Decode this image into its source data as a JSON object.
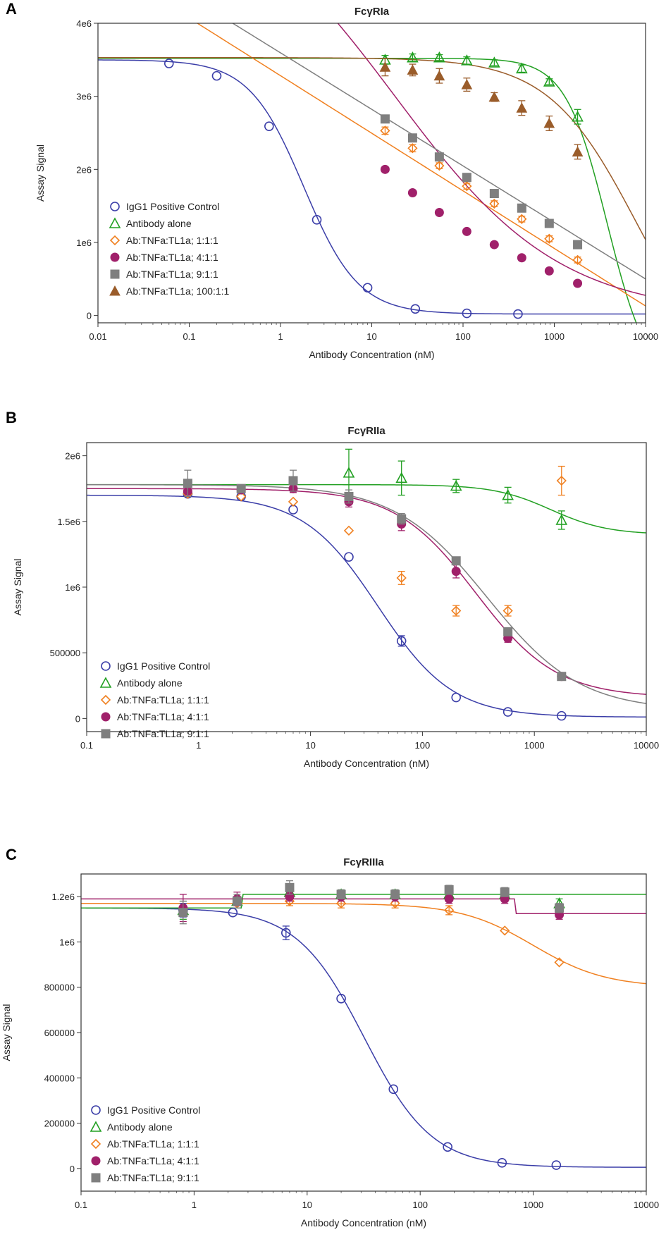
{
  "chart_data": [
    {
      "type": "scatter",
      "panel": "A",
      "title": "FcγRIa",
      "xlabel": "Antibody Concentration (nM)",
      "ylabel": "Assay Signal",
      "xscale": "log",
      "xlim": [
        0.01,
        10000
      ],
      "ylim": [
        -100000,
        4000000
      ],
      "xticks": [
        0.01,
        0.1,
        1,
        10,
        100,
        1000,
        10000
      ],
      "xtick_labels": [
        "0.01",
        "0.1",
        "1",
        "10",
        "100",
        "1000",
        "10000"
      ],
      "yticks": [
        0,
        1000000,
        2000000,
        3000000,
        4000000
      ],
      "ytick_labels": [
        "0",
        "1e6",
        "2e6",
        "3e6",
        "4e6"
      ],
      "legend_position": "lower-left",
      "series": [
        {
          "name": "IgG1 Positive Control",
          "color": "#3b3ea8",
          "marker": "circle-open",
          "x": [
            0.06,
            0.2,
            0.75,
            2.5,
            9,
            30,
            110,
            400
          ],
          "y": [
            3450000,
            3280000,
            2590000,
            1310000,
            380000,
            90000,
            30000,
            20000
          ],
          "err": [
            0,
            0,
            0,
            0,
            0,
            0,
            0,
            0
          ],
          "curve": {
            "model": "4pl",
            "top": 3500000,
            "bottom": 20000,
            "ec50": 1.8,
            "hill": 1.45
          }
        },
        {
          "name": "Antibody alone",
          "color": "#22a022",
          "marker": "triangle-open",
          "x": [
            14,
            28,
            55,
            110,
            220,
            440,
            880,
            1800
          ],
          "y": [
            3500000,
            3530000,
            3530000,
            3490000,
            3460000,
            3380000,
            3200000,
            2720000
          ],
          "err": [
            60000,
            50000,
            40000,
            50000,
            40000,
            50000,
            40000,
            100000
          ],
          "curve": {
            "model": "4pl",
            "top": 3520000,
            "bottom": -1000000,
            "ec50": 3800,
            "hill": 1.9
          }
        },
        {
          "name": "Ab:TNFa:TL1a; 1:1:1",
          "color": "#f08020",
          "marker": "diamond-open",
          "x": [
            14,
            28,
            55,
            110,
            220,
            440,
            880,
            1800
          ],
          "y": [
            2530000,
            2290000,
            2050000,
            1770000,
            1530000,
            1320000,
            1050000,
            760000
          ],
          "err": [
            50000,
            50000,
            40000,
            40000,
            40000,
            40000,
            40000,
            40000
          ],
          "curve": {
            "model": "loglinear",
            "x0": 0.5,
            "y0": 3520000,
            "x1": 10000,
            "y1": 130000
          }
        },
        {
          "name": "Ab:TNFa:TL1a; 4:1:1",
          "color": "#a0206a",
          "marker": "circle-filled",
          "x": [
            14,
            28,
            55,
            110,
            220,
            440,
            880,
            1800
          ],
          "y": [
            2000000,
            1680000,
            1410000,
            1150000,
            970000,
            790000,
            610000,
            440000
          ],
          "err": [
            0,
            0,
            0,
            0,
            0,
            0,
            0,
            0
          ],
          "curve": {
            "model": "4pl",
            "top": 6000000,
            "bottom": 0,
            "ec50": 18,
            "hill": 0.48
          }
        },
        {
          "name": "Ab:TNFa:TL1a; 9:1:1",
          "color": "#7f7f7f",
          "marker": "square-filled",
          "x": [
            14,
            28,
            55,
            110,
            220,
            440,
            880,
            1800
          ],
          "y": [
            2690000,
            2430000,
            2170000,
            1890000,
            1670000,
            1470000,
            1260000,
            970000
          ],
          "err": [
            0,
            0,
            0,
            0,
            0,
            0,
            0,
            0
          ],
          "curve": {
            "model": "loglinear",
            "x0": 0.3,
            "y0": 4000000,
            "x1": 10000,
            "y1": 500000
          }
        },
        {
          "name": "Ab:TNFa:TL1a; 100:1:1",
          "color": "#9a5c2a",
          "marker": "triangle-filled",
          "x": [
            14,
            28,
            55,
            110,
            220,
            440,
            880,
            1800
          ],
          "y": [
            3400000,
            3360000,
            3280000,
            3160000,
            2990000,
            2840000,
            2630000,
            2240000
          ],
          "err": [
            120000,
            80000,
            100000,
            90000,
            60000,
            100000,
            100000,
            100000
          ],
          "curve": {
            "model": "4pl",
            "top": 3530000,
            "bottom": -1000000,
            "ec50": 8000,
            "hill": 0.9
          }
        }
      ]
    },
    {
      "type": "scatter",
      "panel": "B",
      "title": "FcγRIIa",
      "xlabel": "Antibody Concentration (nM)",
      "ylabel": "Assay Signal",
      "xscale": "log",
      "xlim": [
        0.1,
        10000
      ],
      "ylim": [
        -100000,
        2100000
      ],
      "xticks": [
        0.1,
        1,
        10,
        100,
        1000,
        10000
      ],
      "xtick_labels": [
        "0.1",
        "1",
        "10",
        "100",
        "1000",
        "10000"
      ],
      "yticks": [
        0,
        500000,
        1000000,
        1500000,
        2000000
      ],
      "ytick_labels": [
        "0",
        "500000",
        "1e6",
        "1.5e6",
        "2e6"
      ],
      "legend_position": "lower-left",
      "series": [
        {
          "name": "IgG1 Positive Control",
          "color": "#3b3ea8",
          "marker": "circle-open",
          "x": [
            0.8,
            2.4,
            7,
            22,
            65,
            200,
            580,
            1750
          ],
          "y": [
            1710000,
            1690000,
            1590000,
            1230000,
            590000,
            160000,
            50000,
            20000
          ],
          "err": [
            0,
            0,
            0,
            0,
            40000,
            0,
            0,
            0
          ],
          "curve": {
            "model": "4pl",
            "top": 1700000,
            "bottom": 10000,
            "ec50": 40,
            "hill": 1.3
          }
        },
        {
          "name": "Antibody alone",
          "color": "#22a022",
          "marker": "triangle-open",
          "x": [
            22,
            65,
            200,
            580,
            1750
          ],
          "y": [
            1870000,
            1830000,
            1770000,
            1700000,
            1510000
          ],
          "err": [
            180000,
            130000,
            50000,
            60000,
            70000
          ],
          "curve": {
            "model": "4pl",
            "top": 1780000,
            "bottom": 1400000,
            "ec50": 1400,
            "hill": 1.7
          }
        },
        {
          "name": "Ab:TNFa:TL1a; 1:1:1",
          "color": "#f08020",
          "marker": "diamond-open",
          "x": [
            0.8,
            2.4,
            7,
            22,
            65,
            200,
            580,
            1750
          ],
          "y": [
            1710000,
            1690000,
            1650000,
            1430000,
            1070000,
            820000,
            820000,
            1810000
          ],
          "err": [
            0,
            0,
            0,
            0,
            50000,
            40000,
            40000,
            110000
          ]
        },
        {
          "name": "Ab:TNFa:TL1a; 4:1:1",
          "color": "#a0206a",
          "marker": "circle-filled",
          "x": [
            0.8,
            2.4,
            7,
            22,
            65,
            200,
            580,
            1750
          ],
          "y": [
            1730000,
            1740000,
            1750000,
            1650000,
            1480000,
            1120000,
            610000,
            320000
          ],
          "err": [
            40000,
            0,
            30000,
            40000,
            50000,
            50000,
            30000,
            0
          ],
          "curve": {
            "model": "4pl",
            "top": 1750000,
            "bottom": 160000,
            "ec50": 300,
            "hill": 1.2
          }
        },
        {
          "name": "Ab:TNFa:TL1a; 9:1:1",
          "color": "#7f7f7f",
          "marker": "square-filled",
          "x": [
            0.8,
            2.4,
            7,
            22,
            65,
            200,
            580,
            1750
          ],
          "y": [
            1790000,
            1750000,
            1810000,
            1690000,
            1520000,
            1200000,
            660000,
            320000
          ],
          "err": [
            100000,
            0,
            80000,
            50000,
            40000,
            0,
            0,
            0
          ],
          "curve": {
            "model": "4pl",
            "top": 1780000,
            "bottom": 60000,
            "ec50": 380,
            "hill": 1.05
          }
        }
      ]
    },
    {
      "type": "scatter",
      "panel": "C",
      "title": "FcγRIIIa",
      "xlabel": "Antibody Concentration (nM)",
      "ylabel": "Assay Signal",
      "xscale": "log",
      "xlim": [
        0.1,
        10000
      ],
      "ylim": [
        -100000,
        1300000
      ],
      "xticks": [
        0.1,
        1,
        10,
        100,
        1000,
        10000
      ],
      "xtick_labels": [
        "0.1",
        "1",
        "10",
        "100",
        "1000",
        "10000"
      ],
      "yticks": [
        0,
        200000,
        400000,
        600000,
        800000,
        1000000,
        1200000
      ],
      "ytick_labels": [
        "0",
        "200000",
        "400000",
        "600000",
        "800000",
        "1e6",
        "1.2e6"
      ],
      "legend_position": "lower-left",
      "series": [
        {
          "name": "IgG1 Positive Control",
          "color": "#3b3ea8",
          "marker": "circle-open",
          "x": [
            0.8,
            2.2,
            6.5,
            20,
            58,
            175,
            530,
            1600
          ],
          "y": [
            1140000,
            1130000,
            1040000,
            750000,
            350000,
            95000,
            25000,
            15000
          ],
          "err": [
            30000,
            0,
            30000,
            0,
            0,
            0,
            0,
            0
          ],
          "curve": {
            "model": "4pl",
            "top": 1150000,
            "bottom": 5000,
            "ec50": 32,
            "hill": 1.45
          }
        },
        {
          "name": "Antibody alone",
          "color": "#22a022",
          "marker": "triangle-open",
          "x": [
            0.8,
            2.4,
            7,
            20,
            60,
            180,
            560,
            1700
          ],
          "y": [
            1140000,
            1180000,
            1220000,
            1210000,
            1210000,
            1210000,
            1210000,
            1170000
          ],
          "err": [
            40000,
            20000,
            20000,
            20000,
            20000,
            20000,
            20000,
            20000
          ],
          "curve": {
            "model": "step",
            "y_before": 1150000,
            "y_after": 1210000,
            "step_x": 2.7
          }
        },
        {
          "name": "Ab:TNFa:TL1a; 1:1:1",
          "color": "#f08020",
          "marker": "diamond-open",
          "x": [
            0.8,
            2.4,
            7,
            20,
            60,
            180,
            560,
            1700
          ],
          "y": [
            1150000,
            1170000,
            1180000,
            1170000,
            1170000,
            1140000,
            1050000,
            910000
          ],
          "err": [
            0,
            0,
            20000,
            20000,
            20000,
            20000,
            0,
            0
          ],
          "curve": {
            "model": "4pl",
            "top": 1170000,
            "bottom": 800000,
            "ec50": 1000,
            "hill": 1.35
          }
        },
        {
          "name": "Ab:TNFa:TL1a; 4:1:1",
          "color": "#a0206a",
          "marker": "circle-filled",
          "x": [
            0.8,
            2.4,
            7,
            20,
            60,
            180,
            560,
            1700
          ],
          "y": [
            1150000,
            1190000,
            1200000,
            1200000,
            1200000,
            1190000,
            1190000,
            1120000
          ],
          "err": [
            60000,
            30000,
            20000,
            20000,
            20000,
            20000,
            20000,
            20000
          ],
          "curve": {
            "model": "step",
            "y_before": 1190000,
            "y_after": 1125000,
            "step_x": 700
          }
        },
        {
          "name": "Ab:TNFa:TL1a; 9:1:1",
          "color": "#7f7f7f",
          "marker": "square-filled",
          "x": [
            0.8,
            2.4,
            7,
            20,
            60,
            180,
            560,
            1700
          ],
          "y": [
            1130000,
            1180000,
            1240000,
            1210000,
            1210000,
            1230000,
            1220000,
            1150000
          ],
          "err": [
            50000,
            30000,
            30000,
            20000,
            20000,
            20000,
            20000,
            20000
          ]
        }
      ]
    }
  ],
  "panels": {
    "a": {
      "letter": "A"
    },
    "b": {
      "letter": "B"
    },
    "c": {
      "letter": "C"
    }
  }
}
